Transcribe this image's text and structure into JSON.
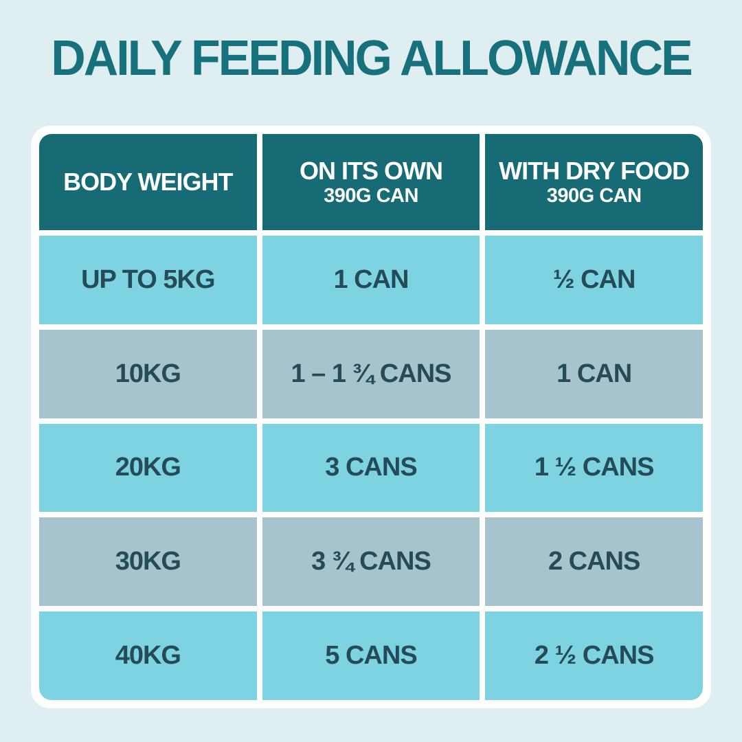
{
  "page": {
    "title": "DAILY FEEDING ALLOWANCE"
  },
  "colors": {
    "background": "#dfeef0",
    "title_text": "#17717d",
    "header_background": "#176b75",
    "header_text": "#ffffff",
    "row_cyan": "#7ed3e2",
    "row_gray": "#a7c4ce",
    "cell_text": "#254b56",
    "frame": "#ffffff"
  },
  "table": {
    "columns": [
      {
        "label": "BODY WEIGHT",
        "sublabel": ""
      },
      {
        "label": "ON ITS OWN",
        "sublabel": "390G CAN"
      },
      {
        "label": "WITH DRY FOOD",
        "sublabel": "390G CAN"
      }
    ],
    "rows": [
      {
        "weight": "UP TO 5KG",
        "on_its_own": "1 CAN",
        "with_dry_food": "½ CAN"
      },
      {
        "weight": "10KG",
        "on_its_own": "1 – 1 ¾ CANS",
        "with_dry_food": "1 CAN"
      },
      {
        "weight": "20KG",
        "on_its_own": "3 CANS",
        "with_dry_food": "1 ½ CANS"
      },
      {
        "weight": "30KG",
        "on_its_own": "3 ¾ CANS",
        "with_dry_food": "2 CANS"
      },
      {
        "weight": "40KG",
        "on_its_own": "5 CANS",
        "with_dry_food": "2 ½ CANS"
      }
    ]
  }
}
